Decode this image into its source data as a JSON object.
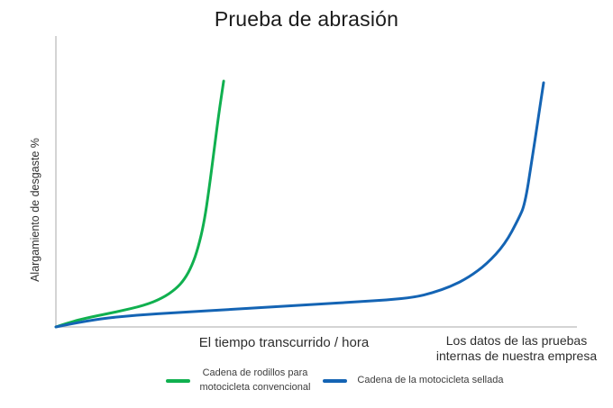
{
  "title": "Prueba de abrasión",
  "axes": {
    "y_label": "Alargamiento de desgaste %",
    "x_label": "El tiempo transcurrido / hora",
    "note_line1": "Los datos de las pruebas",
    "note_line2": "internas de nuestra empresa"
  },
  "colors": {
    "axis": "#c5c5c5",
    "green_series": "#10b04f",
    "blue_series": "#1464b4"
  },
  "legend": {
    "items": [
      {
        "label_line1": "Cadena de rodillos para",
        "label_line2": "motocicleta convencional",
        "color": "#10b04f"
      },
      {
        "label_line1": "Cadena de la motocicleta sellada",
        "label_line2": "",
        "color": "#1464b4"
      }
    ]
  },
  "chart_data": {
    "type": "line",
    "title": "Prueba de abrasión",
    "xlabel": "El tiempo transcurrido / hora",
    "ylabel": "Alargamiento de desgaste %",
    "annotation": "Los datos de las pruebas internas de nuestra empresa",
    "xlim": [
      0,
      100
    ],
    "ylim": [
      0,
      100
    ],
    "ticks": "none",
    "grid": false,
    "legend_position": "bottom",
    "series": [
      {
        "name": "Cadena de rodillos para motocicleta convencional",
        "color": "#10b04f",
        "points": [
          [
            0,
            0
          ],
          [
            3.1,
            2.2
          ],
          [
            6.6,
            4.0
          ],
          [
            11.8,
            6.2
          ],
          [
            17.0,
            8.8
          ],
          [
            20.4,
            11.7
          ],
          [
            23.0,
            15.4
          ],
          [
            24.7,
            19.4
          ],
          [
            26.1,
            24.9
          ],
          [
            27.3,
            32.2
          ],
          [
            28.4,
            42.1
          ],
          [
            29.4,
            56.0
          ],
          [
            30.4,
            72.5
          ],
          [
            31.3,
            87.2
          ],
          [
            32.2,
            100
          ]
        ]
      },
      {
        "name": "Cadena de la motocicleta sellada",
        "color": "#1464b4",
        "points": [
          [
            0,
            0
          ],
          [
            6.6,
            2.9
          ],
          [
            15.2,
            4.8
          ],
          [
            23.9,
            5.9
          ],
          [
            32.5,
            7.0
          ],
          [
            41.2,
            8.1
          ],
          [
            49.8,
            9.2
          ],
          [
            58.5,
            10.3
          ],
          [
            63.7,
            11.0
          ],
          [
            68.9,
            12.1
          ],
          [
            72.3,
            13.9
          ],
          [
            75.8,
            16.5
          ],
          [
            79.2,
            20.1
          ],
          [
            82.7,
            25.6
          ],
          [
            86.2,
            33.7
          ],
          [
            88.8,
            44.0
          ],
          [
            90.0,
            49.8
          ],
          [
            91.3,
            67.0
          ],
          [
            92.6,
            85.3
          ],
          [
            93.6,
            99.3
          ]
        ]
      }
    ]
  }
}
